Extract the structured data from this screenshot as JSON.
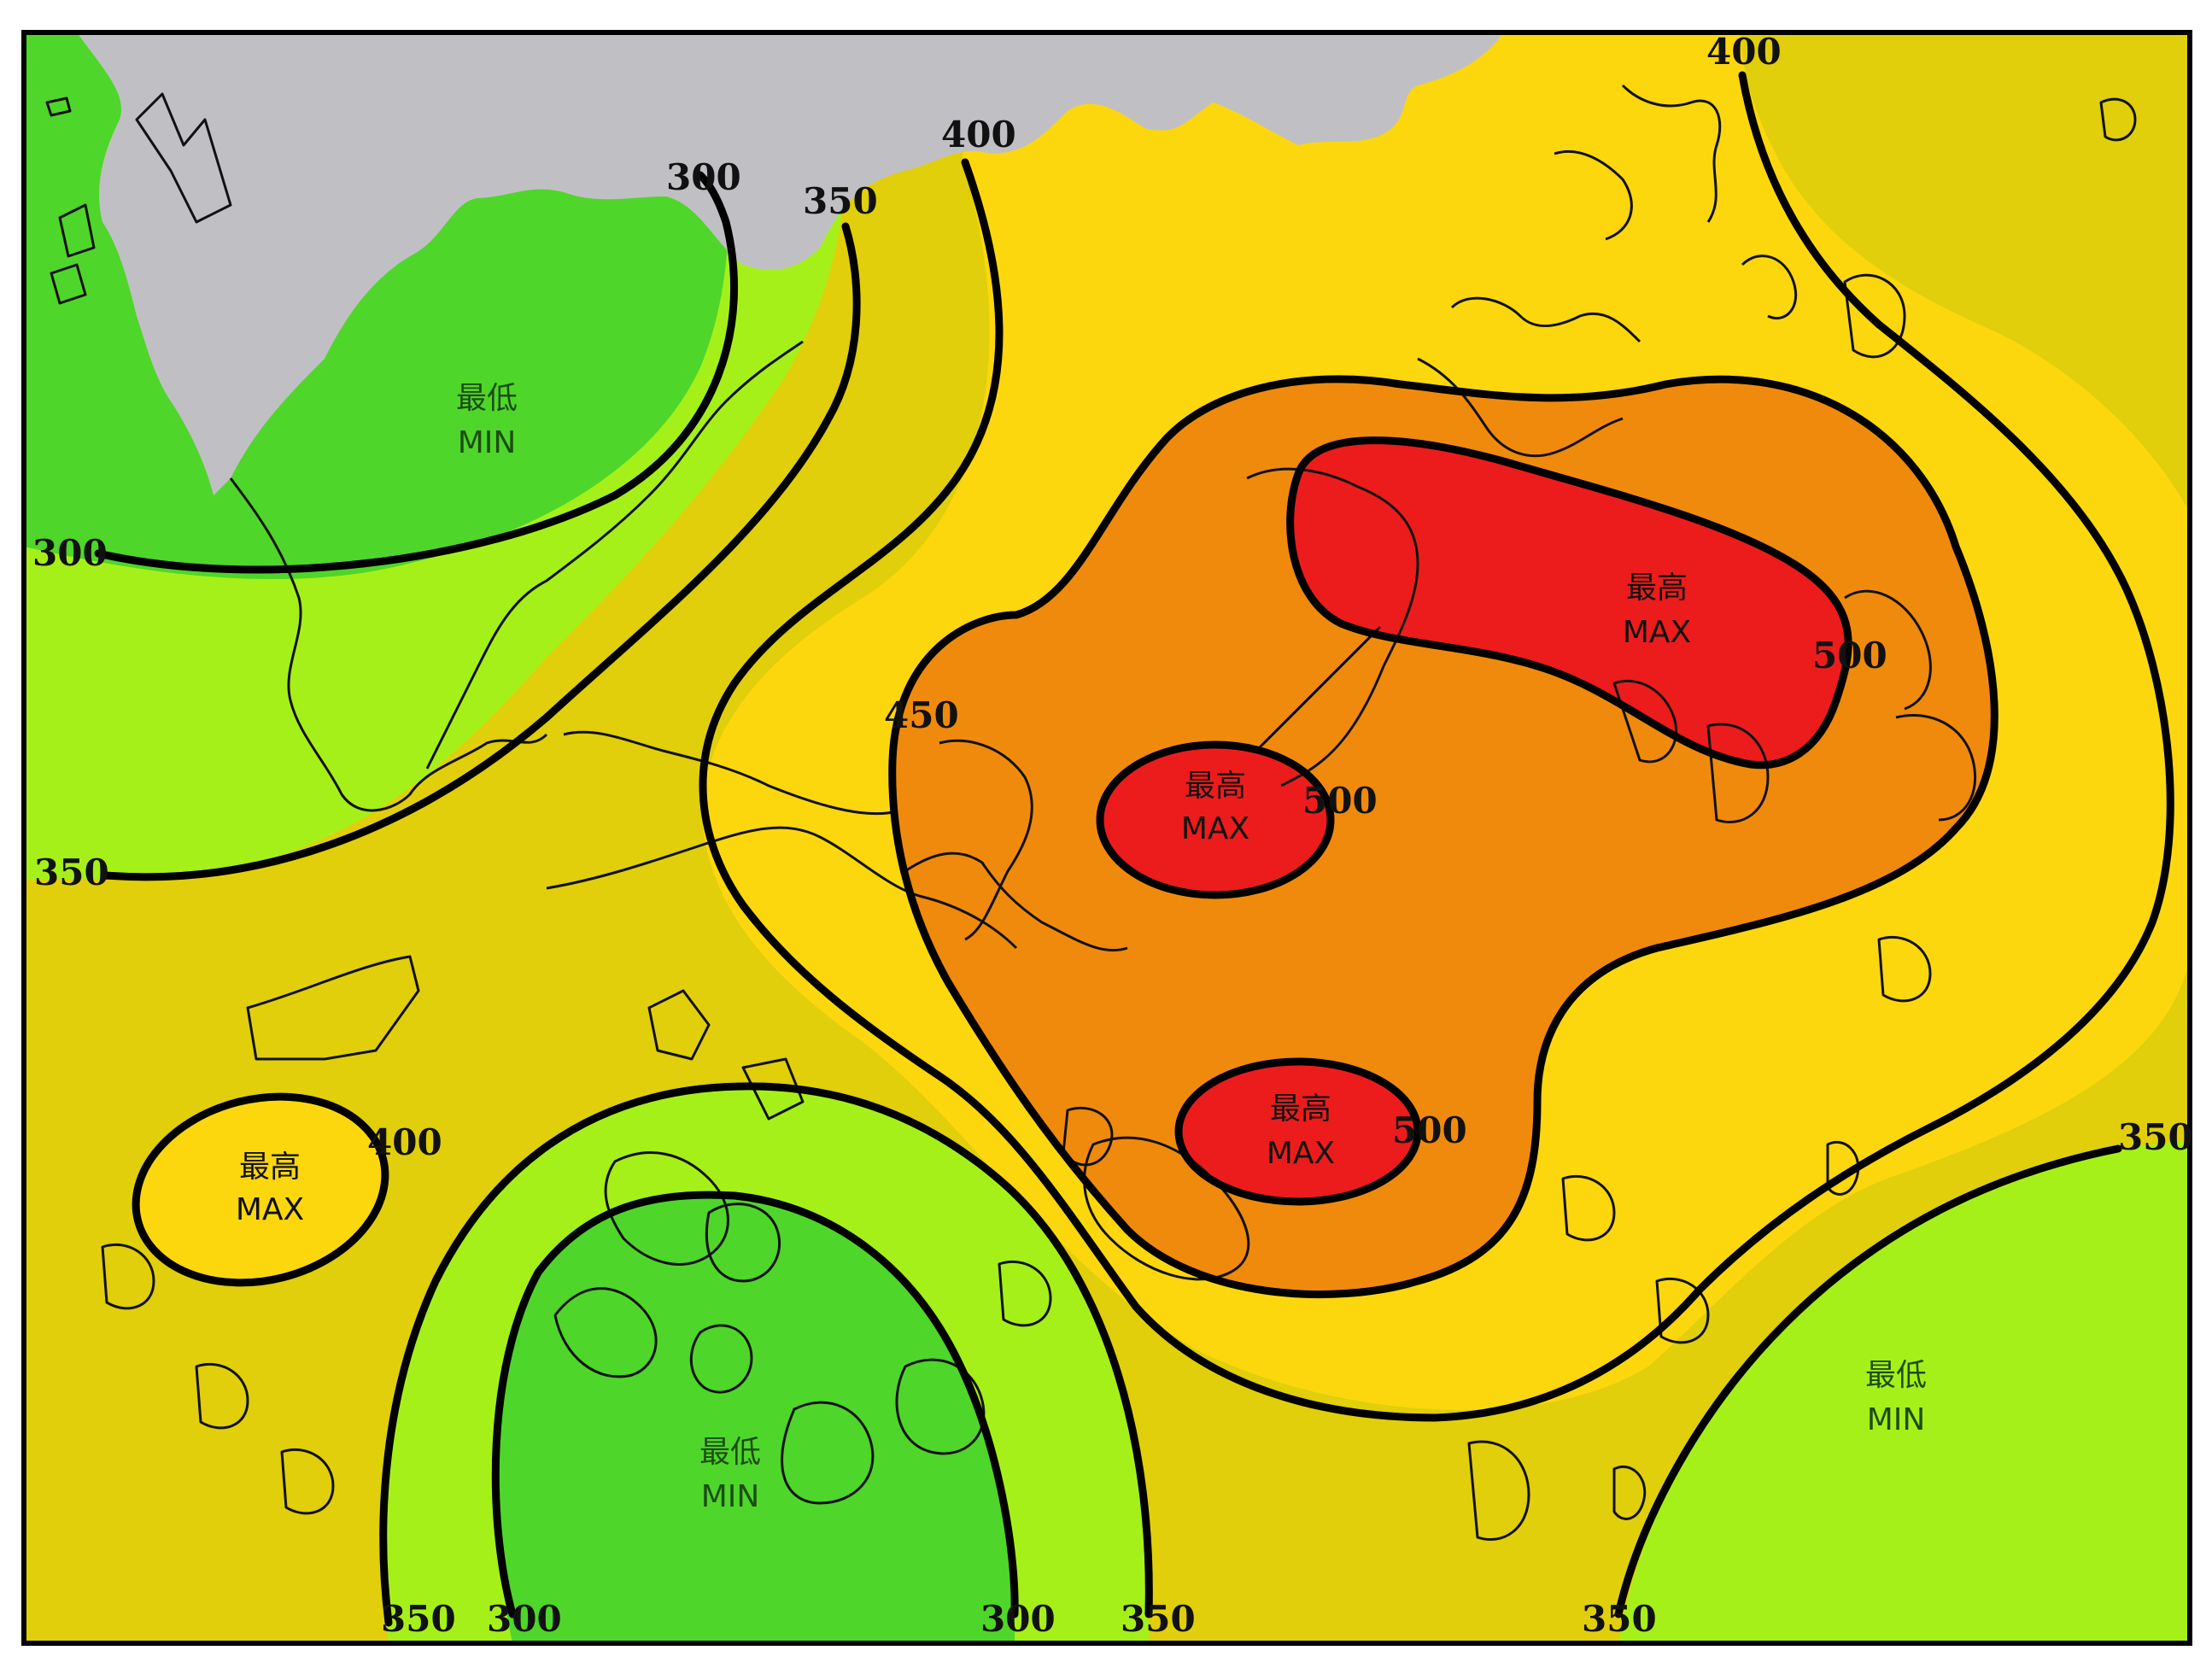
{
  "colors": {
    "background": "#ffffff",
    "land_mainland": "#c0c0c4",
    "band_lt300": "#4fd62a",
    "band_300_350": "#a6f01a",
    "band_350_400": "#e0cf0a",
    "band_400_450": "#fcd70e",
    "band_450_500": "#f08a0c",
    "band_ge500": "#ec1c1c",
    "contour_line": "#000000",
    "min_label": "#1c4d12",
    "max_label": "#111111"
  },
  "contour_labels": [
    {
      "id": "c300-north",
      "text": "300"
    },
    {
      "id": "c350-north",
      "text": "350"
    },
    {
      "id": "c400-north",
      "text": "400"
    },
    {
      "id": "c400-northeast",
      "text": "400"
    },
    {
      "id": "c300-west",
      "text": "300"
    },
    {
      "id": "c350-west",
      "text": "350"
    },
    {
      "id": "c450-center",
      "text": "450"
    },
    {
      "id": "c500-center",
      "text": "500"
    },
    {
      "id": "c500-east",
      "text": "500"
    },
    {
      "id": "c500-south",
      "text": "500"
    },
    {
      "id": "c400-southwest",
      "text": "400"
    },
    {
      "id": "c350-east",
      "text": "350"
    },
    {
      "id": "c350-bottom-left",
      "text": "350"
    },
    {
      "id": "c300-bottom-left",
      "text": "300"
    },
    {
      "id": "c300-bottom-center",
      "text": "300"
    },
    {
      "id": "c350-bottom-center",
      "text": "350"
    },
    {
      "id": "c350-bottom-right",
      "text": "350"
    }
  ],
  "extrema_labels": [
    {
      "id": "min-northwest",
      "zh": "最低",
      "en": "MIN"
    },
    {
      "id": "max-northeast",
      "zh": "最高",
      "en": "MAX"
    },
    {
      "id": "max-center",
      "zh": "最高",
      "en": "MAX"
    },
    {
      "id": "max-southwest",
      "zh": "最高",
      "en": "MAX"
    },
    {
      "id": "max-south",
      "zh": "最高",
      "en": "MAX"
    },
    {
      "id": "min-south",
      "zh": "最低",
      "en": "MIN"
    },
    {
      "id": "min-southeast",
      "zh": "最低",
      "en": "MIN"
    }
  ]
}
